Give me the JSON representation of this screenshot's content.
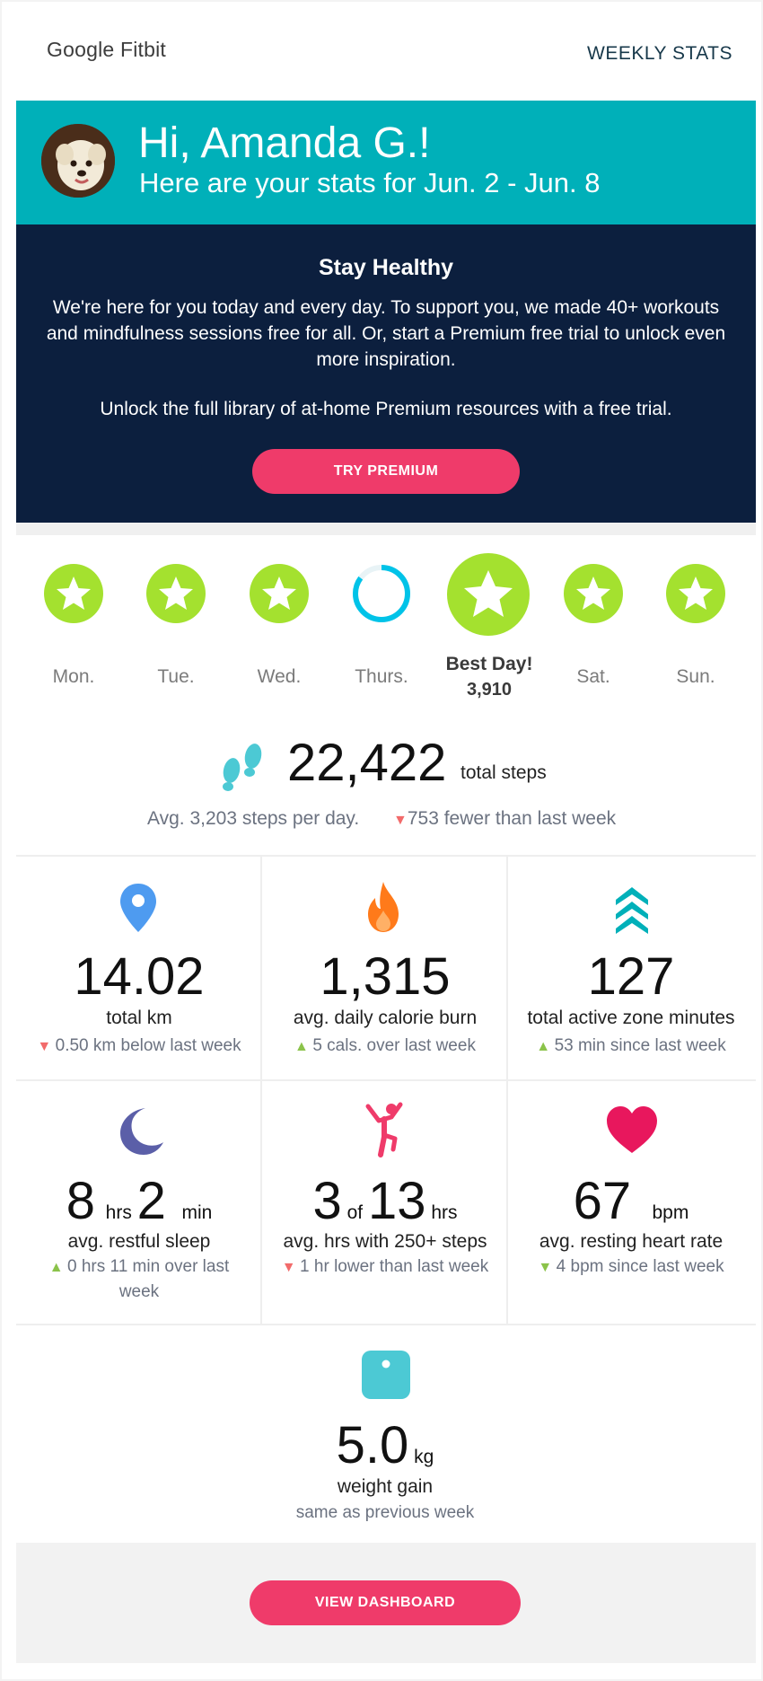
{
  "header": {
    "brand": "Google Fitbit",
    "weekly_label": "WEEKLY STATS"
  },
  "hero": {
    "greeting": "Hi, Amanda G.!",
    "subtitle": "Here are your stats for Jun. 2 - Jun. 8"
  },
  "promo": {
    "title": "Stay Healthy",
    "body": "We're here for you today and every day. To support you, we made 40+ workouts and mindfulness sessions free for all. Or, start a Premium free trial to unlock even more inspiration.",
    "unlock": "Unlock the full library of at-home Premium resources with a free trial.",
    "button": "TRY PREMIUM"
  },
  "week": {
    "days": [
      {
        "label": "Mon.",
        "status": "goal-met"
      },
      {
        "label": "Tue.",
        "status": "goal-met"
      },
      {
        "label": "Wed.",
        "status": "goal-met"
      },
      {
        "label": "Thurs.",
        "status": "in-progress"
      },
      {
        "label": "Best Day!",
        "value": "3,910",
        "status": "best-day"
      },
      {
        "label": "Sat.",
        "status": "goal-met"
      },
      {
        "label": "Sun.",
        "status": "goal-met"
      }
    ],
    "colors": {
      "goal": "#a4e12f",
      "ring": "#00c3e8"
    }
  },
  "steps": {
    "total": "22,422",
    "unit": "total steps",
    "avg": "Avg. 3,203 steps per day.",
    "diff": "753 fewer than last week",
    "icon": "footprints-icon"
  },
  "stats": [
    {
      "icon": "map-pin-icon",
      "value": "14.02",
      "label": "total km",
      "diff": "0.50 km below last week",
      "trend": "down-bad"
    },
    {
      "icon": "flame-icon",
      "value": "1,315",
      "label": "avg. daily calorie burn",
      "diff": "5 cals. over last week",
      "trend": "up-good"
    },
    {
      "icon": "active-zone-icon",
      "value": "127",
      "label": "total active zone minutes",
      "diff": "53 min since last week",
      "trend": "up-good"
    },
    {
      "icon": "moon-icon",
      "value_hours": "8",
      "hours_unit": "hrs",
      "value_min": "2",
      "min_unit": "min",
      "label": "avg. restful sleep",
      "diff": "0 hrs 11 min over last week",
      "trend": "up-good"
    },
    {
      "icon": "person-stretch-icon",
      "value_a": "3",
      "of": "of",
      "value_b": "13",
      "b_unit": "hrs",
      "label": "avg. hrs with 250+ steps",
      "diff": "1 hr lower than last week",
      "trend": "down-bad"
    },
    {
      "icon": "heart-icon",
      "value": "67",
      "unit": "bpm",
      "label": "avg. resting heart rate",
      "diff": "4 bpm since last week",
      "trend": "down-good"
    }
  ],
  "weight": {
    "icon": "scale-icon",
    "value": "5.0",
    "unit": "kg",
    "label": "weight gain",
    "diff": "same as previous week"
  },
  "footer": {
    "button": "VIEW DASHBOARD"
  },
  "colors": {
    "teal": "#00b0b9",
    "navy": "#0c1f3e",
    "pink": "#ef3b6a",
    "green": "#a4e12f"
  }
}
